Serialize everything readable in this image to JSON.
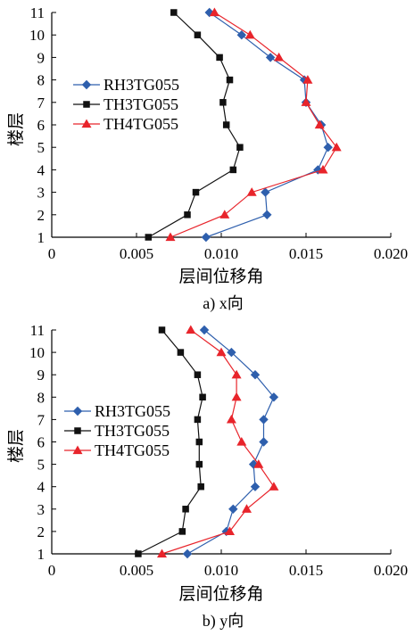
{
  "chart_data": [
    {
      "type": "line",
      "caption": "a) x向",
      "xlabel": "层间位移角",
      "ylabel": "楼层",
      "xlim": [
        0,
        0.02
      ],
      "ylim": [
        1,
        11
      ],
      "xticks": [
        "0",
        "0.005",
        "0.010",
        "0.015",
        "0.020"
      ],
      "yticks": [
        "1",
        "2",
        "3",
        "4",
        "5",
        "6",
        "7",
        "8",
        "9",
        "10",
        "11"
      ],
      "legend": "upper-left",
      "series": [
        {
          "name": "RH3TG055",
          "color": "#2e5fad",
          "marker": "diamond",
          "x": [
            0.0091,
            0.0127,
            0.0126,
            0.0157,
            0.0163,
            0.0159,
            0.015,
            0.0149,
            0.0129,
            0.0112,
            0.0093
          ],
          "y": [
            1,
            2,
            3,
            4,
            5,
            6,
            7,
            8,
            9,
            10,
            11
          ]
        },
        {
          "name": "TH3TG055",
          "color": "#111111",
          "marker": "square",
          "x": [
            0.0057,
            0.008,
            0.0085,
            0.0107,
            0.0111,
            0.0103,
            0.0101,
            0.0105,
            0.0099,
            0.0086,
            0.0072
          ],
          "y": [
            1,
            2,
            3,
            4,
            5,
            6,
            7,
            8,
            9,
            10,
            11
          ]
        },
        {
          "name": "TH4TG055",
          "color": "#e8242b",
          "marker": "triangle",
          "x": [
            0.007,
            0.0102,
            0.0118,
            0.016,
            0.0168,
            0.0158,
            0.015,
            0.0151,
            0.0134,
            0.0117,
            0.0096
          ],
          "y": [
            1,
            2,
            3,
            4,
            5,
            6,
            7,
            8,
            9,
            10,
            11
          ]
        }
      ]
    },
    {
      "type": "line",
      "caption": "b) y向",
      "xlabel": "层间位移角",
      "ylabel": "楼层",
      "xlim": [
        0,
        0.02
      ],
      "ylim": [
        1,
        11
      ],
      "xticks": [
        "0",
        "0.005",
        "0.010",
        "0.015",
        "0.020"
      ],
      "yticks": [
        "1",
        "2",
        "3",
        "4",
        "5",
        "6",
        "7",
        "8",
        "9",
        "10",
        "11"
      ],
      "legend": "upper-left",
      "series": [
        {
          "name": "RH3TG055",
          "color": "#2e5fad",
          "marker": "diamond",
          "x": [
            0.008,
            0.0103,
            0.0107,
            0.012,
            0.0119,
            0.0125,
            0.0125,
            0.0131,
            0.012,
            0.0106,
            0.009
          ],
          "y": [
            1,
            2,
            3,
            4,
            5,
            6,
            7,
            8,
            9,
            10,
            11
          ]
        },
        {
          "name": "TH3TG055",
          "color": "#111111",
          "marker": "square",
          "x": [
            0.0051,
            0.0077,
            0.0079,
            0.0088,
            0.0087,
            0.0087,
            0.0086,
            0.0089,
            0.0086,
            0.0076,
            0.0065
          ],
          "y": [
            1,
            2,
            3,
            4,
            5,
            6,
            7,
            8,
            9,
            10,
            11
          ]
        },
        {
          "name": "TH4TG055",
          "color": "#e8242b",
          "marker": "triangle",
          "x": [
            0.0065,
            0.0105,
            0.0115,
            0.0131,
            0.0122,
            0.0112,
            0.0106,
            0.0109,
            0.0109,
            0.01,
            0.0082
          ],
          "y": [
            1,
            2,
            3,
            4,
            5,
            6,
            7,
            8,
            9,
            10,
            11
          ]
        }
      ]
    }
  ]
}
